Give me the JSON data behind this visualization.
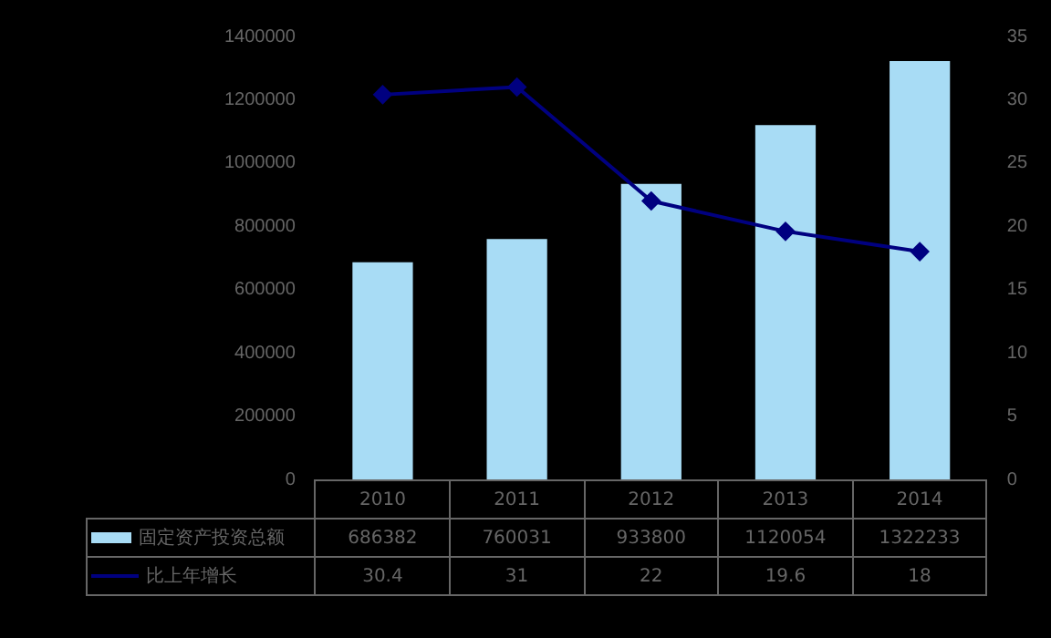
{
  "chart_data": {
    "type": "bar",
    "categories": [
      "2010",
      "2011",
      "2012",
      "2013",
      "2014"
    ],
    "series": [
      {
        "name": "固定资产投资总额",
        "color": "#a8dcf5",
        "values": [
          686382,
          760031,
          933800,
          1120054,
          1322233
        ]
      },
      {
        "name": "比上年增长",
        "type": "line",
        "axis": "y2",
        "color": "#000080",
        "values": [
          30.4,
          31.0,
          22.0,
          19.6,
          18.0
        ]
      }
    ],
    "ylim": [
      0,
      1400000
    ],
    "yticks": [
      0,
      200000,
      400000,
      600000,
      800000,
      1000000,
      1200000,
      1400000
    ],
    "y2lim": [
      0,
      35
    ],
    "y2ticks": [
      0,
      5,
      10,
      15,
      20,
      25,
      30,
      35
    ],
    "grid": false,
    "legend": "bottom",
    "marker": "diamond",
    "data_labels": true
  }
}
